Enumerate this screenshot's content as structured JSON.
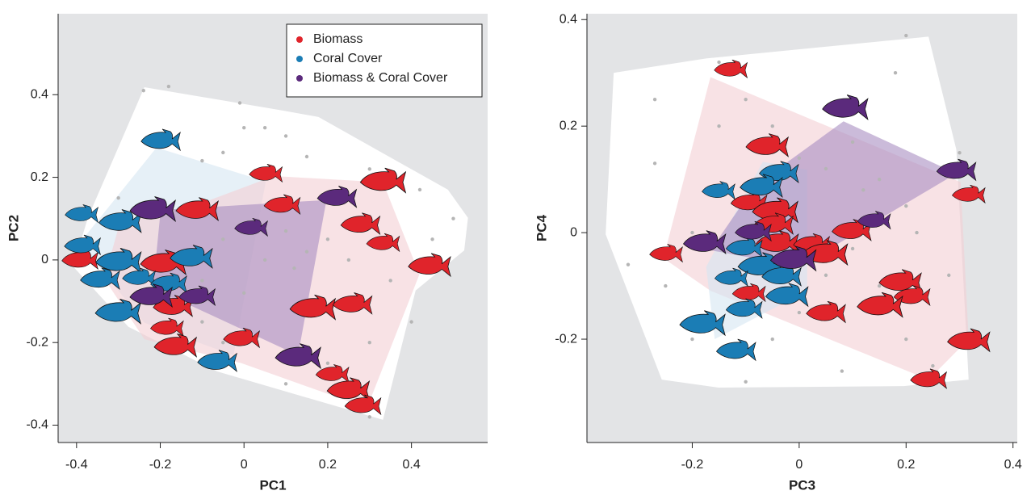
{
  "chart_data": [
    {
      "type": "scatter",
      "xlabel": "PC1",
      "ylabel": "PC2",
      "xlim": [
        -0.444,
        0.582
      ],
      "ylim": [
        -0.442,
        0.596
      ],
      "xticks": [
        -0.4,
        -0.2,
        0,
        0.2,
        0.4
      ],
      "yticks": [
        -0.4,
        -0.2,
        0,
        0.2,
        0.4
      ],
      "legend": "upper right",
      "hulls": [
        {
          "color": "#ffffff",
          "x": [
            -0.238,
            0.091,
            0.178,
            0.487,
            0.535,
            0.526,
            0.41,
            0.332,
            -0.064,
            -0.276,
            -0.408,
            -0.373
          ],
          "y": [
            0.418,
            0.362,
            0.346,
            0.17,
            0.102,
            0.023,
            -0.074,
            -0.387,
            -0.27,
            -0.162,
            -0.016,
            0.102
          ]
        },
        {
          "color": "#d5e6f2",
          "x": [
            -0.209,
            0.052,
            -0.025,
            -0.238,
            -0.363,
            -0.383
          ],
          "y": [
            0.272,
            0.19,
            -0.231,
            -0.152,
            0.004,
            0.053
          ]
        },
        {
          "color": "#f3cfd3",
          "x": [
            -0.102,
            0.072,
            0.332,
            0.419,
            0.294,
            -0.006,
            -0.238,
            -0.334,
            -0.296
          ],
          "y": [
            0.137,
            0.203,
            0.188,
            -0.035,
            -0.358,
            -0.25,
            -0.192,
            -0.045,
            0.092
          ]
        },
        {
          "color": "#a98dc2",
          "x": [
            -0.199,
            0.197,
            0.129,
            -0.141,
            -0.218
          ],
          "y": [
            0.121,
            0.145,
            -0.231,
            -0.104,
            -0.074
          ]
        }
      ],
      "points": {
        "color": "#b5b5b5",
        "x": [
          -0.24,
          -0.18,
          -0.01,
          0.05,
          0.0,
          0.1,
          -0.05,
          0.15,
          -0.1,
          0.3,
          0.42,
          0.5,
          0.2,
          0.15,
          0.1,
          0.05,
          -0.05,
          -0.1,
          0.0,
          0.12,
          0.25,
          0.35,
          0.4,
          0.3,
          0.2,
          -0.1,
          -0.15,
          0.1,
          0.3,
          -0.05,
          0.45,
          -0.3
        ],
        "y": [
          0.41,
          0.42,
          0.38,
          0.32,
          0.32,
          0.3,
          0.26,
          0.25,
          0.24,
          0.22,
          0.17,
          0.1,
          0.05,
          0.02,
          0.07,
          0.0,
          0.05,
          -0.05,
          -0.08,
          -0.02,
          0.0,
          -0.05,
          -0.15,
          -0.2,
          -0.25,
          -0.15,
          -0.18,
          -0.3,
          -0.38,
          -0.2,
          0.05,
          0.15
        ]
      },
      "series": [
        {
          "name": "Biomass",
          "color": "#e0242b",
          "x": [
            0.052,
            -0.112,
            0.091,
            0.332,
            0.278,
            0.332,
            0.443,
            -0.392,
            -0.193,
            -0.17,
            -0.184,
            -0.164,
            -0.006,
            0.164,
            0.259,
            0.211,
            0.249,
            0.284
          ],
          "y": [
            0.207,
            0.119,
            0.131,
            0.188,
            0.084,
            0.039,
            -0.016,
            -0.002,
            -0.01,
            -0.115,
            -0.166,
            -0.211,
            -0.192,
            -0.119,
            -0.109,
            -0.278,
            -0.317,
            -0.354
          ]
        },
        {
          "name": "Coral Cover",
          "color": "#1b7db5",
          "x": [
            -0.199,
            -0.388,
            -0.296,
            -0.386,
            -0.3,
            -0.344,
            -0.251,
            -0.126,
            -0.18,
            -0.301,
            -0.064
          ],
          "y": [
            0.287,
            0.109,
            0.09,
            0.033,
            -0.006,
            -0.049,
            -0.045,
            0.004,
            -0.059,
            -0.129,
            -0.248
          ]
        },
        {
          "name": "Biomass & Coral Cover",
          "color": "#5b2a7c",
          "x": [
            -0.218,
            0.222,
            0.017,
            -0.222,
            -0.112,
            0.129
          ],
          "y": [
            0.119,
            0.149,
            0.076,
            -0.09,
            -0.09,
            -0.237
          ]
        }
      ]
    },
    {
      "type": "scatter",
      "xlabel": "PC3",
      "ylabel": "PC4",
      "xlim": [
        -0.397,
        0.408
      ],
      "ylim": [
        -0.394,
        0.411
      ],
      "xticks": [
        -0.2,
        0,
        0.2,
        0.4
      ],
      "yticks": [
        -0.2,
        0,
        0.2,
        0.4
      ],
      "hulls": [
        {
          "color": "#ffffff",
          "x": [
            -0.347,
            -0.174,
            0.242,
            0.294,
            0.317,
            0.196,
            -0.151,
            -0.257,
            -0.362
          ],
          "y": [
            0.3,
            0.327,
            0.368,
            0.156,
            -0.276,
            -0.288,
            -0.291,
            -0.276,
            -0.003
          ]
        },
        {
          "color": "#f3cfd3",
          "x": [
            -0.166,
            0.302,
            0.317,
            0.242,
            -0.166,
            -0.254
          ],
          "y": [
            0.292,
            0.095,
            -0.2,
            -0.276,
            -0.109,
            -0.048
          ]
        },
        {
          "color": "#d5e6f2",
          "x": [
            -0.068,
            0.015,
            0.015,
            -0.158,
            -0.174
          ],
          "y": [
            0.133,
            0.118,
            -0.109,
            -0.2,
            -0.064
          ]
        },
        {
          "color": "#a98dc2",
          "x": [
            0.083,
            0.294,
            0.0,
            -0.166,
            -0.083
          ],
          "y": [
            0.209,
            0.111,
            -0.064,
            -0.033,
            0.088
          ]
        }
      ],
      "points": {
        "color": "#b5b5b5",
        "x": [
          -0.27,
          -0.27,
          -0.32,
          -0.25,
          -0.2,
          -0.15,
          -0.1,
          -0.05,
          0.0,
          0.05,
          0.1,
          0.15,
          0.2,
          0.1,
          0.05,
          0.0,
          -0.05,
          0.15,
          0.2,
          0.25,
          0.18,
          0.2,
          -0.15,
          -0.2,
          -0.1,
          0.08,
          0.28,
          0.22,
          0.12,
          -0.02,
          0.3
        ],
        "y": [
          0.25,
          0.13,
          -0.06,
          -0.1,
          0.0,
          0.2,
          0.25,
          0.2,
          0.14,
          0.12,
          0.17,
          0.1,
          0.05,
          -0.03,
          -0.08,
          -0.15,
          -0.2,
          -0.1,
          -0.2,
          -0.25,
          0.3,
          0.37,
          0.32,
          -0.2,
          -0.28,
          -0.26,
          -0.08,
          0.0,
          0.08,
          0.05,
          0.15
        ]
      },
      "series": [
        {
          "color": "#e0242b",
          "x": [
            -0.128,
            -0.06,
            -0.094,
            -0.045,
            -0.048,
            -0.249,
            -0.041,
            0.023,
            0.048,
            0.098,
            0.317,
            0.189,
            0.211,
            0.151,
            0.05,
            -0.094,
            0.317,
            0.242
          ],
          "y": [
            0.305,
            0.161,
            0.055,
            0.039,
            0.014,
            -0.041,
            -0.021,
            -0.023,
            -0.041,
            0.002,
            0.07,
            -0.094,
            -0.121,
            -0.139,
            -0.152,
            -0.115,
            -0.205,
            -0.277
          ]
        },
        {
          "color": "#1b7db5",
          "x": [
            -0.038,
            -0.151,
            -0.071,
            -0.103,
            -0.072,
            -0.033,
            -0.127,
            -0.023,
            -0.103,
            -0.181,
            -0.118
          ],
          "y": [
            0.111,
            0.077,
            0.085,
            -0.03,
            -0.064,
            -0.083,
            -0.086,
            -0.12,
            -0.145,
            -0.173,
            -0.223
          ]
        },
        {
          "color": "#5b2a7c",
          "x": [
            0.086,
            0.294,
            0.14,
            -0.177,
            -0.086,
            -0.011
          ],
          "y": [
            0.232,
            0.115,
            0.021,
            -0.021,
            0.0,
            -0.052
          ]
        }
      ]
    }
  ]
}
